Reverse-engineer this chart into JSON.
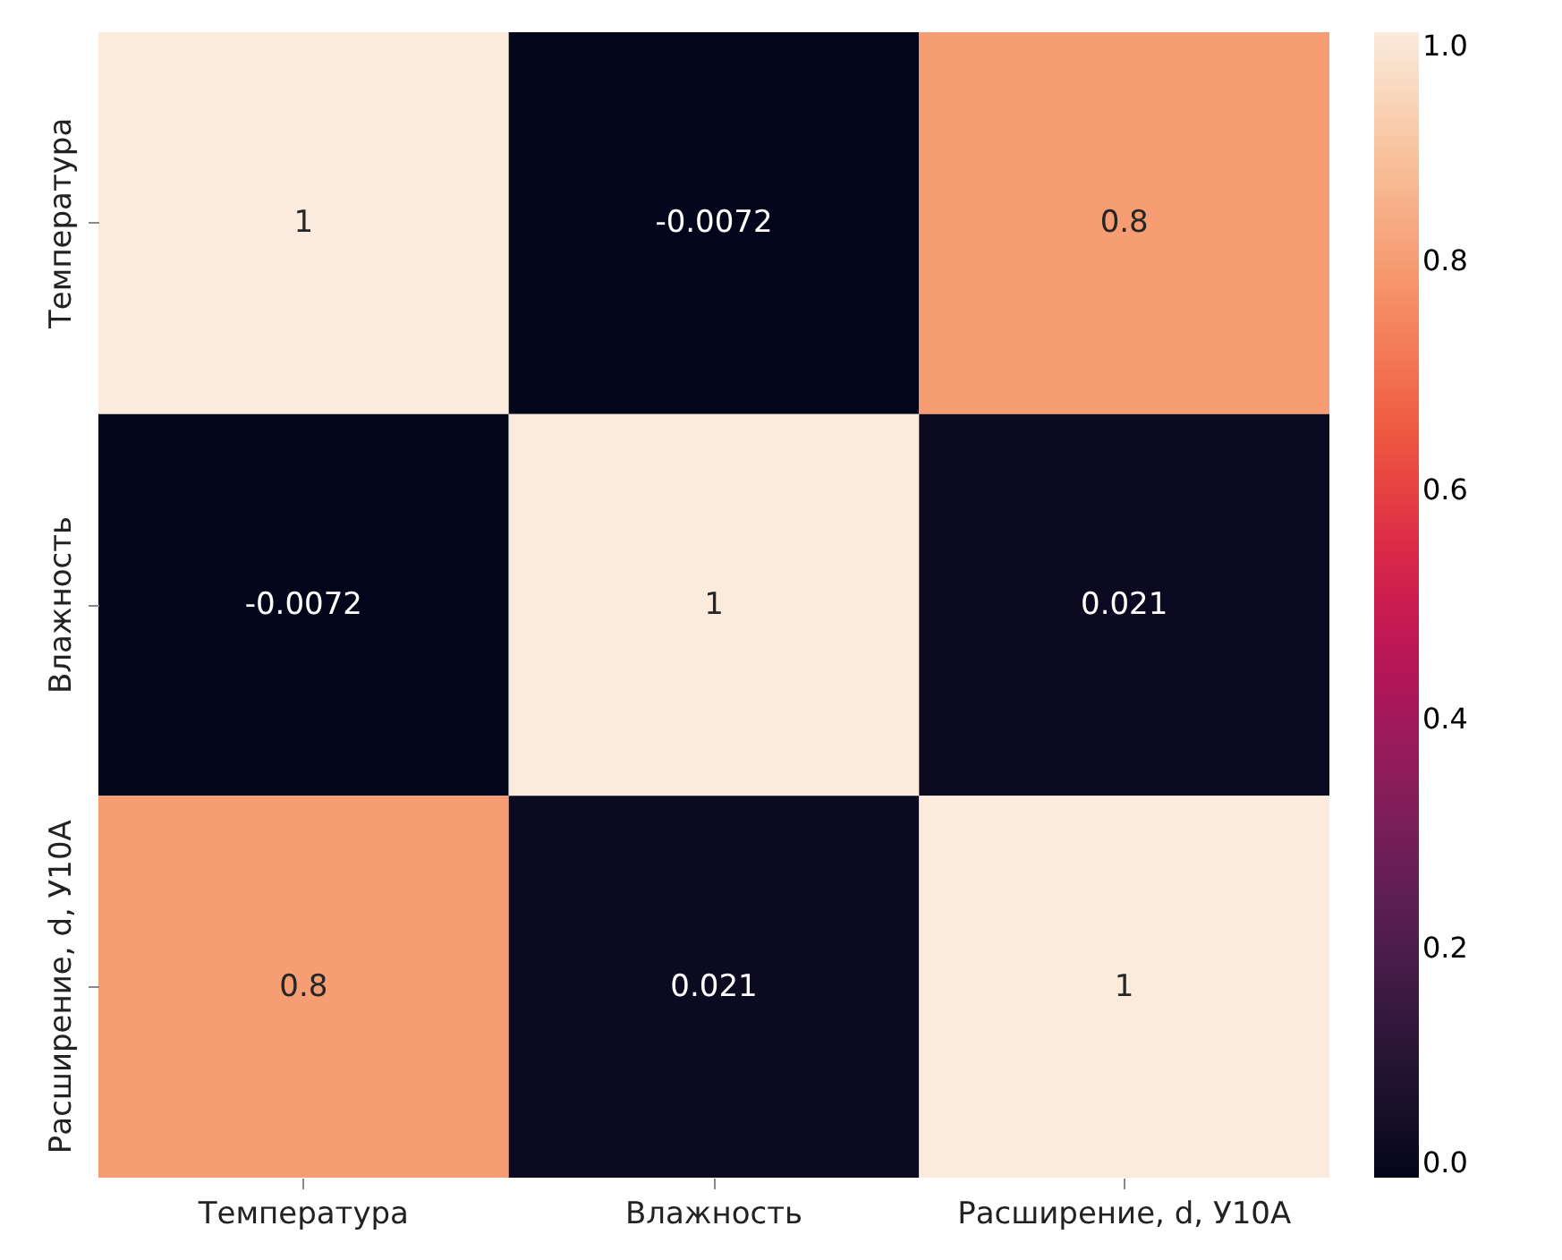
{
  "chart_data": {
    "type": "heatmap",
    "categories": [
      "Температура",
      "Влажность",
      "Расширение, d, У10А"
    ],
    "y_categories": [
      "Температура",
      "Влажность",
      "Расширение, d, У10А"
    ],
    "cells": [
      [
        1,
        -0.0072,
        0.8
      ],
      [
        -0.0072,
        1,
        0.021
      ],
      [
        0.8,
        0.021,
        1
      ]
    ],
    "data_labels": true,
    "clim": [
      0,
      1
    ],
    "cticks": [
      {
        "value": 0,
        "label": "0.0"
      },
      {
        "value": 0.2,
        "label": "0.2"
      },
      {
        "value": 0.4,
        "label": "0.4"
      },
      {
        "value": 0.6,
        "label": "0.6"
      },
      {
        "value": 0.8,
        "label": "0.8"
      },
      {
        "value": 1,
        "label": "1.0"
      }
    ]
  }
}
